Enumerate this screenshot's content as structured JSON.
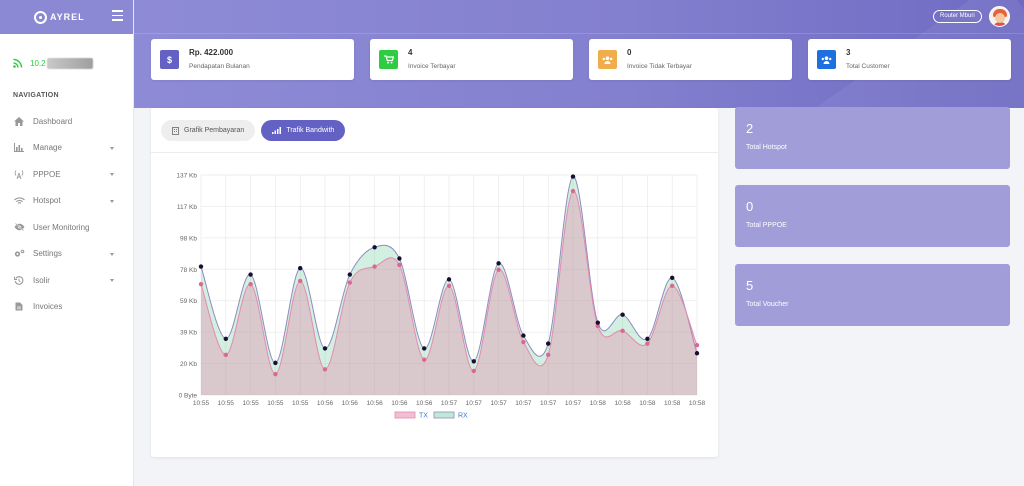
{
  "brand": {
    "name": "AYREL"
  },
  "user": {
    "ip": "10.2"
  },
  "nav": {
    "title": "NAVIGATION",
    "items": [
      {
        "label": "Dashboard",
        "icon": "home-icon",
        "caret": false
      },
      {
        "label": "Manage",
        "icon": "bar-chart-icon",
        "caret": true
      },
      {
        "label": "PPPOE",
        "icon": "antenna-icon",
        "caret": true
      },
      {
        "label": "Hotspot",
        "icon": "wifi-icon",
        "caret": true
      },
      {
        "label": "User Monitoring",
        "icon": "eye-slash-icon",
        "caret": false
      },
      {
        "label": "Settings",
        "icon": "gears-icon",
        "caret": true
      },
      {
        "label": "Isolir",
        "icon": "history-icon",
        "caret": true
      },
      {
        "label": "Invoices",
        "icon": "file-icon",
        "caret": false
      }
    ]
  },
  "header": {
    "router_label": "Router Mburi"
  },
  "stats": [
    {
      "value": "Rp. 422.000",
      "label": "Pendapatan Bulanan",
      "icon": "dollar-icon",
      "color": "#6461c5"
    },
    {
      "value": "4",
      "label": "Invoice Terbayar",
      "icon": "cart-icon",
      "color": "#2ecc40"
    },
    {
      "value": "0",
      "label": "Invoice Tidak Terbayar",
      "icon": "users-icon",
      "color": "#f0ad4e"
    },
    {
      "value": "3",
      "label": "Total Customer",
      "icon": "users-icon",
      "color": "#1e6fe0"
    }
  ],
  "tabs": [
    {
      "label": "Grafik Pembayaran",
      "active": false
    },
    {
      "label": "Trafik Bandwith",
      "active": true
    }
  ],
  "panels": [
    {
      "value": "2",
      "label": "Total Hotspot"
    },
    {
      "value": "0",
      "label": "Total PPPOE"
    },
    {
      "value": "5",
      "label": "Total Voucher"
    }
  ],
  "colors": {
    "tx": "#e87da7",
    "rx": "#7fd3a9",
    "accent": "#6461c5",
    "panel": "#a09dd9"
  },
  "chart_data": {
    "type": "area",
    "x": [
      "10:55",
      "10:55",
      "10:55",
      "10:55",
      "10:55",
      "10:56",
      "10:56",
      "10:56",
      "10:56",
      "10:56",
      "10:57",
      "10:57",
      "10:57",
      "10:57",
      "10:57",
      "10:57",
      "10:58",
      "10:58",
      "10:58",
      "10:58",
      "10:58"
    ],
    "y_ticks": [
      "0 Byte",
      "20 Kb",
      "39 Kb",
      "59 Kb",
      "78 Kb",
      "98 Kb",
      "117 Kb",
      "137 Kb"
    ],
    "ylim": [
      0,
      137
    ],
    "series": [
      {
        "name": "TX",
        "values": [
          69,
          25,
          69,
          13,
          71,
          16,
          70,
          80,
          81,
          22,
          68,
          15,
          78,
          33,
          25,
          127,
          43,
          40,
          32,
          68,
          31
        ]
      },
      {
        "name": "RX",
        "values": [
          80,
          35,
          75,
          20,
          79,
          29,
          75,
          92,
          85,
          29,
          72,
          21,
          82,
          37,
          32,
          136,
          45,
          50,
          35,
          73,
          26
        ]
      }
    ],
    "legend_position": "bottom"
  }
}
